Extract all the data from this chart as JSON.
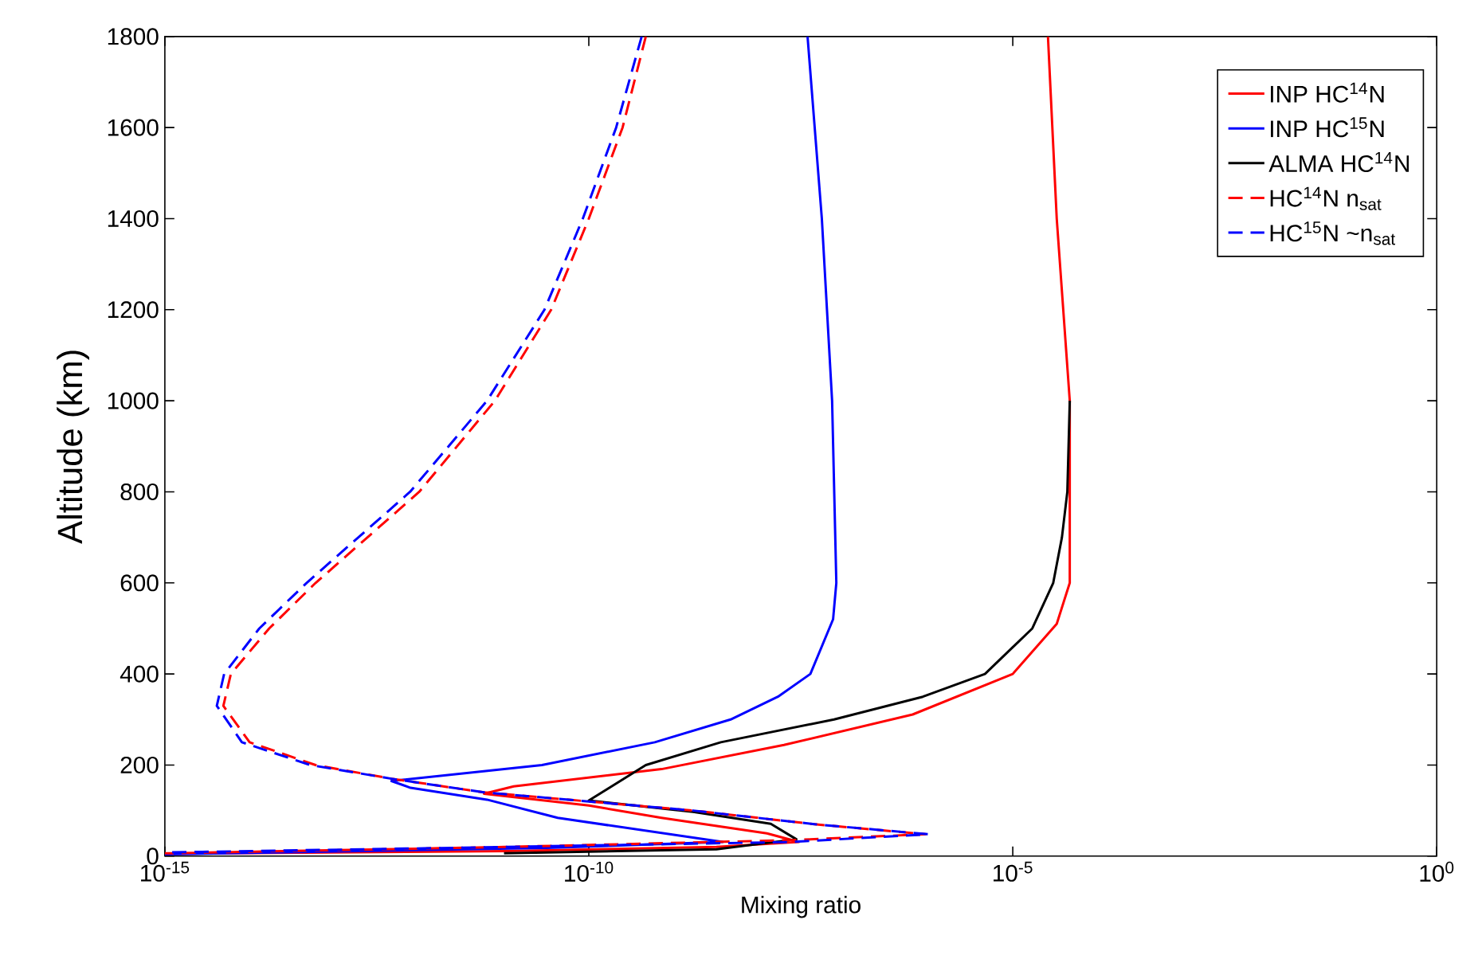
{
  "chart_data": {
    "type": "line",
    "xlabel": "Mixing ratio",
    "ylabel": "Altitude (km)",
    "log": "x",
    "grid": false,
    "legend": "top right",
    "xlim": [
      1e-15,
      1
    ],
    "ylim": [
      0,
      1800
    ],
    "xticks": [
      {
        "value": 1e-15,
        "label": "10$^{-15}$"
      },
      {
        "value": 1e-10,
        "label": "10$^{-10}$"
      },
      {
        "value": 1e-05,
        "label": "10$^{-5}$"
      },
      {
        "value": 1,
        "label": "10$^{0}$"
      }
    ],
    "yticks": [
      0,
      200,
      400,
      600,
      800,
      1000,
      1200,
      1400,
      1600,
      1800
    ],
    "series": [
      {
        "name": "INP HC$^{14}$N",
        "color": "#ff0000",
        "line_style": "solid",
        "x": [
          2.6e-05,
          3.3e-05,
          4.7e-05,
          4.7e-05,
          3.3e-05,
          1e-05,
          6.6e-07,
          2e-08,
          7.2e-10,
          1.3e-11,
          5.8e-12,
          1e-10,
          7.2e-10,
          1.26e-08,
          3e-08,
          3.2e-09,
          1.1e-11,
          1e-15
        ],
        "values": [
          1800,
          1400,
          1000,
          600,
          510,
          400,
          311,
          244,
          191,
          153,
          137,
          111,
          84,
          50,
          31,
          20,
          11,
          5
        ]
      },
      {
        "name": "INP HC$^{15}$N",
        "color": "#0000ff",
        "line_style": "solid",
        "x": [
          3.8e-08,
          5.6e-08,
          7.4e-08,
          8.3e-08,
          7.6e-08,
          4.1e-08,
          1.7e-08,
          4.7e-09,
          6e-10,
          2.8e-11,
          4.7e-13,
          7.9e-13,
          6.3e-12,
          4.3e-11,
          3.8e-09,
          3.2e-11,
          1e-15
        ],
        "values": [
          1800,
          1400,
          1000,
          600,
          520,
          400,
          350,
          300,
          250,
          200,
          165,
          150,
          124,
          84,
          31,
          18,
          4
        ]
      },
      {
        "name": "ALMA HC$^{14}$N",
        "color": "#000000",
        "line_style": "solid",
        "x": [
          4.7e-05,
          4.4e-05,
          3.8e-05,
          3e-05,
          1.7e-05,
          4.7e-06,
          8.7e-07,
          7.8e-08,
          3.6e-09,
          4.7e-10,
          1e-10,
          1.7e-09,
          1.4e-08,
          2.8e-08,
          3.2e-09,
          1e-11
        ],
        "values": [
          1000,
          800,
          700,
          600,
          500,
          400,
          350,
          300,
          250,
          200,
          122,
          97,
          71,
          37,
          15,
          6
        ]
      },
      {
        "name": "HC$^{14}$N n$_{sat}$",
        "color": "#ff0000",
        "line_style": "dashed",
        "x": [
          4.7e-10,
          2.5e-10,
          1e-10,
          3.6e-11,
          7.8e-12,
          1e-12,
          6e-14,
          1.7e-14,
          6e-15,
          4.9e-15,
          1e-14,
          6e-14,
          4.7e-13,
          5.8e-12,
          1.7e-09,
          4.6e-08,
          9.3e-07,
          2.4e-08,
          1e-11,
          1e-15
        ],
        "values": [
          1800,
          1600,
          1400,
          1200,
          1000,
          800,
          600,
          500,
          400,
          330,
          250,
          200,
          170,
          140,
          100,
          70,
          48,
          35,
          20,
          6
        ]
      },
      {
        "name": "HC$^{15}$N ~n$_{sat}$",
        "color": "#0000ff",
        "line_style": "dashed",
        "x": [
          4.2e-10,
          2.1e-10,
          8.5e-11,
          3e-11,
          6.3e-12,
          7.8e-13,
          4.7e-14,
          1.3e-14,
          5e-15,
          4.1e-15,
          8.1e-15,
          5.2e-14,
          4.7e-13,
          5.8e-12,
          1.7e-09,
          4.6e-08,
          1e-06,
          2.4e-08,
          1e-11,
          1e-15
        ],
        "values": [
          1800,
          1600,
          1400,
          1200,
          1000,
          800,
          600,
          500,
          400,
          330,
          250,
          200,
          170,
          140,
          100,
          70,
          48,
          31,
          20,
          8
        ]
      }
    ]
  }
}
